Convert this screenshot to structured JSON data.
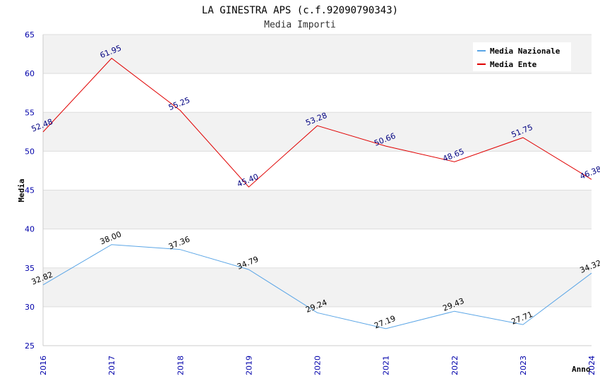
{
  "chart_data": {
    "type": "line",
    "title": "LA GINESTRA APS (c.f.92090790343)",
    "subtitle": "Media Importi",
    "xlabel": "Anno",
    "ylabel": "Media",
    "categories": [
      "2016",
      "2017",
      "2018",
      "2019",
      "2020",
      "2021",
      "2022",
      "2023",
      "2024"
    ],
    "ylim": [
      25,
      65
    ],
    "yticks": [
      "25",
      "30",
      "35",
      "40",
      "45",
      "50",
      "55",
      "60",
      "65"
    ],
    "grid": true,
    "legend_position": "top-right",
    "series": [
      {
        "name": "Media Nazionale",
        "color": "#5aa5e6",
        "label_color": "#000000",
        "values": [
          32.82,
          38.0,
          37.36,
          34.79,
          29.24,
          27.19,
          29.43,
          27.71,
          34.32
        ],
        "labels": [
          "32.82",
          "38.00",
          "37.36",
          "34.79",
          "29.24",
          "27.19",
          "29.43",
          "27.71",
          "34.32"
        ]
      },
      {
        "name": "Media Ente",
        "color": "#e00000",
        "label_color": "#000080",
        "values": [
          52.48,
          61.95,
          55.25,
          45.4,
          53.28,
          50.66,
          48.65,
          51.75,
          46.38
        ],
        "labels": [
          "52.48",
          "61.95",
          "55.25",
          "45.40",
          "53.28",
          "50.66",
          "48.65",
          "51.75",
          "46.38"
        ]
      }
    ]
  },
  "colors": {
    "band": "#f2f2f2",
    "grid": "#dddddd",
    "axis_text": "#0000aa"
  }
}
